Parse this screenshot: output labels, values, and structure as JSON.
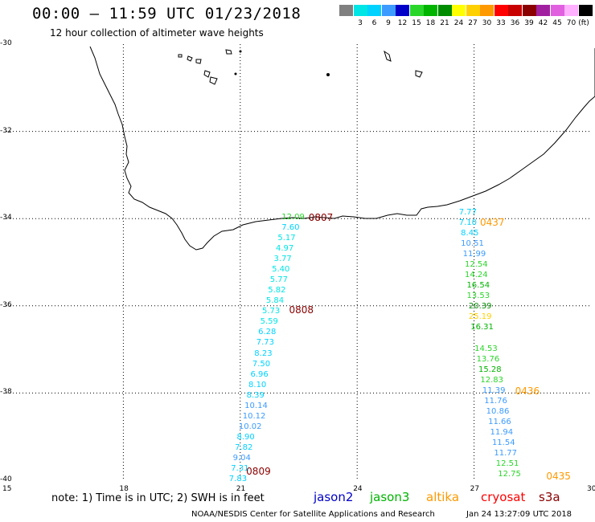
{
  "header": {
    "title": "00:00 – 11:59 UTC 01/23/2018",
    "subtitle": "12 hour collection of altimeter wave heights"
  },
  "color_scale": {
    "unit_label": "(ft)",
    "bins": [
      {
        "label": "",
        "color": "#808080"
      },
      {
        "label": "3",
        "color": "#00e5e5"
      },
      {
        "label": "6",
        "color": "#00d2ff"
      },
      {
        "label": "9",
        "color": "#3c9bff"
      },
      {
        "label": "12",
        "color": "#0000c8"
      },
      {
        "label": "15",
        "color": "#2bd62b"
      },
      {
        "label": "18",
        "color": "#00b400"
      },
      {
        "label": "21",
        "color": "#008c00"
      },
      {
        "label": "24",
        "color": "#ffff00"
      },
      {
        "label": "27",
        "color": "#ffd000"
      },
      {
        "label": "30",
        "color": "#ff9900"
      },
      {
        "label": "33",
        "color": "#ff0000"
      },
      {
        "label": "36",
        "color": "#c80000"
      },
      {
        "label": "39",
        "color": "#8b0000"
      },
      {
        "label": "42",
        "color": "#a020a0"
      },
      {
        "label": "45",
        "color": "#e060e0"
      },
      {
        "label": "70",
        "color": "#ffb0ff"
      },
      {
        "label": "",
        "color": "#000000"
      }
    ]
  },
  "map": {
    "lat_labels": [
      "-30",
      "-32",
      "-34",
      "-36",
      "-38",
      "-40"
    ],
    "lon_labels": [
      "15",
      "18",
      "21",
      "24",
      "27",
      "30"
    ],
    "lat_range": [
      -30,
      -40
    ],
    "lon_range": [
      15,
      30
    ],
    "grid": "dotted"
  },
  "tracks": [
    {
      "satellite": "jason3",
      "time_labels": [
        {
          "text": "0807",
          "lat": -33.97,
          "lon": 23.0
        },
        {
          "text": "0808",
          "lat": -36.1,
          "lon": 22.5
        },
        {
          "text": "0809",
          "lat": -39.8,
          "lon": 21.4
        }
      ],
      "obs": [
        {
          "lat": -33.98,
          "lon": 22.35,
          "swh": 12.09,
          "color": "#2bd62b"
        },
        {
          "lat": -34.22,
          "lon": 22.35,
          "swh": 7.6,
          "color": "#00d2ff"
        },
        {
          "lat": -34.46,
          "lon": 22.25,
          "swh": 5.17,
          "color": "#00e5e5"
        },
        {
          "lat": -34.7,
          "lon": 22.2,
          "swh": 4.97,
          "color": "#00e5e5"
        },
        {
          "lat": -34.94,
          "lon": 22.15,
          "swh": 3.77,
          "color": "#00e5e5"
        },
        {
          "lat": -35.18,
          "lon": 22.1,
          "swh": 5.4,
          "color": "#00e5e5"
        },
        {
          "lat": -35.42,
          "lon": 22.05,
          "swh": 5.77,
          "color": "#00e5e5"
        },
        {
          "lat": -35.66,
          "lon": 22.0,
          "swh": 5.82,
          "color": "#00e5e5"
        },
        {
          "lat": -35.9,
          "lon": 21.95,
          "swh": 5.84,
          "color": "#00e5e5"
        },
        {
          "lat": -36.14,
          "lon": 21.85,
          "swh": 5.73,
          "color": "#00e5e5"
        },
        {
          "lat": -36.38,
          "lon": 21.8,
          "swh": 5.59,
          "color": "#00e5e5"
        },
        {
          "lat": -36.62,
          "lon": 21.75,
          "swh": 6.28,
          "color": "#00d2ff"
        },
        {
          "lat": -36.86,
          "lon": 21.7,
          "swh": 7.73,
          "color": "#00d2ff"
        },
        {
          "lat": -37.1,
          "lon": 21.65,
          "swh": 8.23,
          "color": "#00d2ff"
        },
        {
          "lat": -37.34,
          "lon": 21.6,
          "swh": 7.5,
          "color": "#00d2ff"
        },
        {
          "lat": -37.58,
          "lon": 21.55,
          "swh": 6.96,
          "color": "#00d2ff"
        },
        {
          "lat": -37.82,
          "lon": 21.5,
          "swh": 8.1,
          "color": "#00d2ff"
        },
        {
          "lat": -38.06,
          "lon": 21.45,
          "swh": 8.39,
          "color": "#00d2ff"
        },
        {
          "lat": -38.3,
          "lon": 21.4,
          "swh": 10.14,
          "color": "#3c9bff"
        },
        {
          "lat": -38.54,
          "lon": 21.35,
          "swh": 10.12,
          "color": "#3c9bff"
        },
        {
          "lat": -38.78,
          "lon": 21.25,
          "swh": 10.02,
          "color": "#3c9bff"
        },
        {
          "lat": -39.02,
          "lon": 21.2,
          "swh": 8.9,
          "color": "#00d2ff"
        },
        {
          "lat": -39.26,
          "lon": 21.15,
          "swh": 7.82,
          "color": "#00d2ff"
        },
        {
          "lat": -39.5,
          "lon": 21.1,
          "swh": 9.04,
          "color": "#3c9bff"
        },
        {
          "lat": -39.74,
          "lon": 21.05,
          "swh": 7.31,
          "color": "#00d2ff"
        },
        {
          "lat": -39.98,
          "lon": 21.0,
          "swh": 7.83,
          "color": "#00d2ff"
        }
      ]
    },
    {
      "satellite": "altika",
      "time_labels": [
        {
          "text": "0437",
          "lat": -34.08,
          "lon": 27.4
        },
        {
          "text": "0436",
          "lat": -37.95,
          "lon": 28.3
        },
        {
          "text": "0435",
          "lat": -39.9,
          "lon": 29.1
        }
      ],
      "obs": [
        {
          "lat": -33.86,
          "lon": 26.9,
          "swh": 7.77,
          "color": "#00d2ff"
        },
        {
          "lat": -34.1,
          "lon": 26.9,
          "swh": 7.1,
          "color": "#00d2ff"
        },
        {
          "lat": -34.34,
          "lon": 26.95,
          "swh": 8.45,
          "color": "#00d2ff"
        },
        {
          "lat": -34.58,
          "lon": 26.95,
          "swh": 10.51,
          "color": "#3c9bff"
        },
        {
          "lat": -34.82,
          "lon": 27.0,
          "swh": 11.99,
          "color": "#3c9bff"
        },
        {
          "lat": -35.06,
          "lon": 27.05,
          "swh": 12.54,
          "color": "#2bd62b"
        },
        {
          "lat": -35.3,
          "lon": 27.05,
          "swh": 14.24,
          "color": "#2bd62b"
        },
        {
          "lat": -35.54,
          "lon": 27.1,
          "swh": 16.54,
          "color": "#00b400"
        },
        {
          "lat": -35.78,
          "lon": 27.1,
          "swh": 13.53,
          "color": "#2bd62b"
        },
        {
          "lat": -36.02,
          "lon": 27.15,
          "swh": 20.39,
          "color": "#008c00"
        },
        {
          "lat": -36.26,
          "lon": 27.15,
          "swh": 25.19,
          "color": "#ffd000"
        },
        {
          "lat": -36.5,
          "lon": 27.2,
          "swh": 16.31,
          "color": "#00b400"
        },
        {
          "lat": -37.0,
          "lon": 27.3,
          "swh": 14.53,
          "color": "#2bd62b"
        },
        {
          "lat": -37.24,
          "lon": 27.35,
          "swh": 13.76,
          "color": "#2bd62b"
        },
        {
          "lat": -37.48,
          "lon": 27.4,
          "swh": 15.28,
          "color": "#00b400"
        },
        {
          "lat": -37.72,
          "lon": 27.45,
          "swh": 12.83,
          "color": "#2bd62b"
        },
        {
          "lat": -37.96,
          "lon": 27.5,
          "swh": 11.39,
          "color": "#3c9bff"
        },
        {
          "lat": -38.2,
          "lon": 27.55,
          "swh": 11.76,
          "color": "#3c9bff"
        },
        {
          "lat": -38.44,
          "lon": 27.6,
          "swh": 10.86,
          "color": "#3c9bff"
        },
        {
          "lat": -38.68,
          "lon": 27.65,
          "swh": 11.66,
          "color": "#3c9bff"
        },
        {
          "lat": -38.92,
          "lon": 27.7,
          "swh": 11.94,
          "color": "#3c9bff"
        },
        {
          "lat": -39.16,
          "lon": 27.75,
          "swh": 11.54,
          "color": "#3c9bff"
        },
        {
          "lat": -39.4,
          "lon": 27.8,
          "swh": 11.77,
          "color": "#3c9bff"
        },
        {
          "lat": -39.64,
          "lon": 27.85,
          "swh": 12.51,
          "color": "#2bd62b"
        },
        {
          "lat": -39.88,
          "lon": 27.9,
          "swh": 12.75,
          "color": "#2bd62b"
        }
      ]
    }
  ],
  "footer": {
    "note": "note: 1) Time is in UTC; 2) SWH is in feet",
    "satellites": [
      {
        "name": "jason2",
        "color": "#0000c8"
      },
      {
        "name": "jason3",
        "color": "#00b400"
      },
      {
        "name": "altika",
        "color": "#ff9900"
      },
      {
        "name": "cryosat",
        "color": "#ff0000"
      },
      {
        "name": "s3a",
        "color": "#8b0000"
      }
    ],
    "credit": "NOAA/NESDIS Center for Satellite Applications and Research",
    "timestamp": "Jan 24 13:27:09 UTC 2018"
  }
}
